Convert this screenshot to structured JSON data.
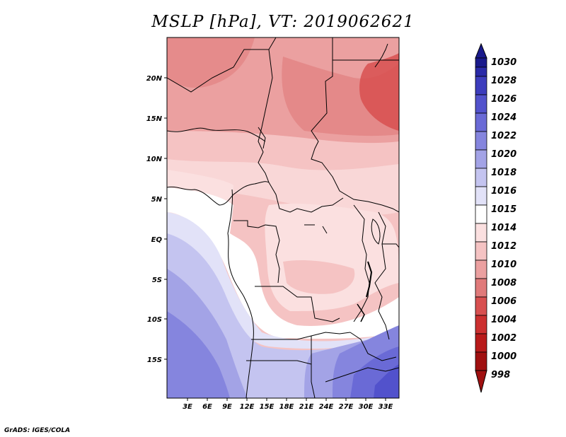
{
  "title": "MSLP [hPa], VT: 2019062621",
  "credit": "GrADS: IGES/COLA",
  "map": {
    "lat_labels": [
      "20N",
      "15N",
      "10N",
      "5N",
      "EQ",
      "5S",
      "10S",
      "15S"
    ],
    "lon_labels": [
      "3E",
      "6E",
      "9E",
      "12E",
      "15E",
      "18E",
      "21E",
      "24E",
      "27E",
      "30E",
      "33E"
    ]
  },
  "colorbar": {
    "levels": [
      "1030",
      "1028",
      "1026",
      "1024",
      "1022",
      "1020",
      "1018",
      "1016",
      "1015",
      "1014",
      "1012",
      "1010",
      "1008",
      "1006",
      "1004",
      "1002",
      "1000",
      "998"
    ],
    "colors": [
      "#1a1a8c",
      "#2a2aa8",
      "#3d3dbd",
      "#5252cc",
      "#6a6ad6",
      "#8585de",
      "#a3a3e6",
      "#c4c4f0",
      "#e2e2f8",
      "#ffffff",
      "#fbe0e0",
      "#f5c3c3",
      "#eba0a0",
      "#e07a7a",
      "#d85050",
      "#cc3030",
      "#b81a1a",
      "#a01010"
    ]
  }
}
